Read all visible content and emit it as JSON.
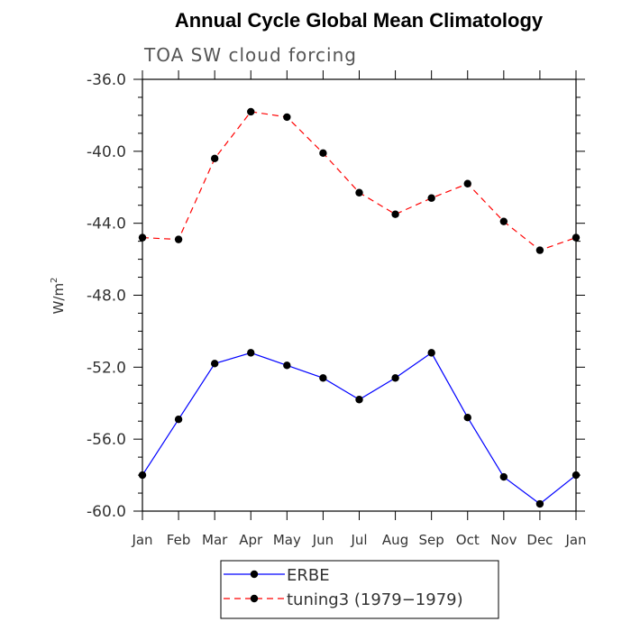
{
  "chart_data": {
    "type": "line",
    "title": "Annual Cycle Global Mean Climatology",
    "subtitle": "TOA SW cloud forcing",
    "ylabel": "W/m",
    "ylabel_sup": "2",
    "xlabel": "",
    "ylim": [
      -60.0,
      -36.0
    ],
    "yticks": [
      "-36.0",
      "-40.0",
      "-44.0",
      "-48.0",
      "-52.0",
      "-56.0",
      "-60.0"
    ],
    "ytick_values": [
      -36,
      -40,
      -44,
      -48,
      -52,
      -56,
      -60
    ],
    "categories": [
      "Jan",
      "Feb",
      "Mar",
      "Apr",
      "May",
      "Jun",
      "Jul",
      "Aug",
      "Sep",
      "Oct",
      "Nov",
      "Dec",
      "Jan"
    ],
    "grid": false,
    "legend_placement": "bottom-center",
    "series": [
      {
        "name": "ERBE",
        "color": "#0000ff",
        "dash": "solid",
        "values": [
          -58.0,
          -54.9,
          -51.8,
          -51.2,
          -51.9,
          -52.6,
          -53.8,
          -52.6,
          -51.2,
          -54.8,
          -58.1,
          -59.6,
          -58.0
        ]
      },
      {
        "name": "tuning3 (1979−1979)",
        "color": "#ff0000",
        "dash": "dashed",
        "values": [
          -44.8,
          -44.9,
          -40.4,
          -37.8,
          -38.1,
          -40.1,
          -42.3,
          -43.5,
          -42.6,
          -41.8,
          -43.9,
          -45.5,
          -44.8
        ]
      }
    ]
  }
}
